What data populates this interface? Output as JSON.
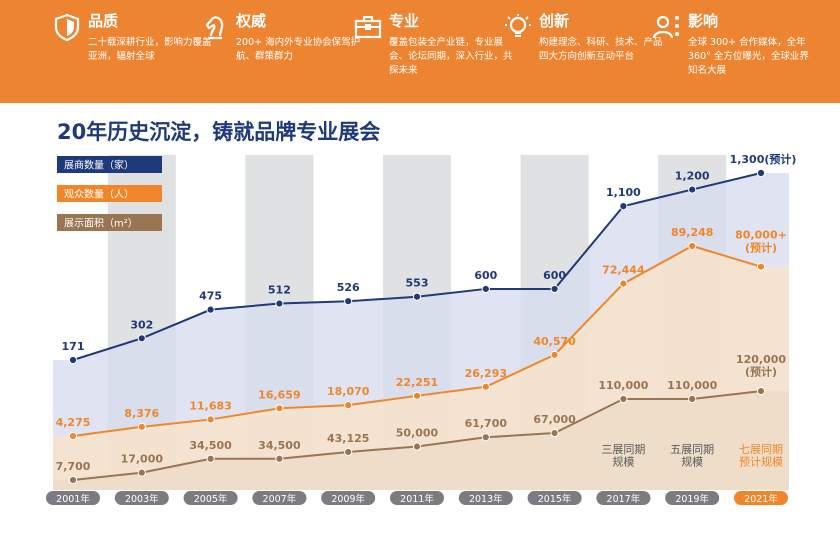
{
  "banner": {
    "features": [
      {
        "icon": "shield-icon",
        "title": "品质",
        "desc": "二十载深耕行业，影响力覆盖亚洲，辐射全球"
      },
      {
        "icon": "chess-knight-icon",
        "title": "权威",
        "desc": "200+ 海内外专业协会保驾护航、群策群力"
      },
      {
        "icon": "toolbox-icon",
        "title": "专业",
        "desc": "覆盖包装全产业链，专业展会、论坛同期，深入行业，共探未来"
      },
      {
        "icon": "lightbulb-icon",
        "title": "创新",
        "desc": "构建理念、科研、技术、产品四大方向创新互动平台"
      },
      {
        "icon": "people-network-icon",
        "title": "影响",
        "desc": "全球 300+ 合作媒体，全年 360° 全方位曝光，全球业界知名大展"
      }
    ]
  },
  "page_title": "20年历史沉淀，铸就品牌专业展会",
  "colors": {
    "banner": "#ec8431",
    "navy": "#1f3a7a",
    "orange": "#f0862a",
    "brown": "#9a7552",
    "stripe": "#e0e1e3",
    "navy_fill": "#d7dcee",
    "orange_fill": "#fbe3c9",
    "brown_fill": "#ecdcc6"
  },
  "chart_data": {
    "type": "line",
    "categories": [
      "2001年",
      "2003年",
      "2005年",
      "2007年",
      "2009年",
      "2011年",
      "2013年",
      "2015年",
      "2017年",
      "2019年",
      "2021年"
    ],
    "highlight_category": "2021年",
    "series": [
      {
        "name": "展商数量（家）",
        "color": "#1f3a7a",
        "values": [
          171,
          302,
          475,
          512,
          526,
          553,
          600,
          600,
          1100,
          1200,
          1300
        ],
        "labels": [
          "171",
          "302",
          "475",
          "512",
          "526",
          "553",
          "600",
          "600",
          "1,100",
          "1,200",
          "1,300(预计)"
        ]
      },
      {
        "name": "观众数量（人）",
        "color": "#f0862a",
        "values": [
          4275,
          8376,
          11683,
          16659,
          18070,
          22251,
          26293,
          40570,
          72444,
          89248,
          80000
        ],
        "labels": [
          "4,275",
          "8,376",
          "11,683",
          "16,659",
          "18,070",
          "22,251",
          "26,293",
          "40,570",
          "72,444",
          "89,248",
          "80,000+\n(预计)"
        ]
      },
      {
        "name": "展示面积（m²）",
        "color": "#9a7552",
        "values": [
          7700,
          17000,
          34500,
          34500,
          43125,
          50000,
          61700,
          67000,
          110000,
          110000,
          120000
        ],
        "labels": [
          "7,700",
          "17,000",
          "34,500",
          "34,500",
          "43,125",
          "50,000",
          "61,700",
          "67,000",
          "110,000",
          "110,000",
          "120,000\n(预计)"
        ]
      }
    ],
    "annotations": [
      {
        "category": "2017年",
        "text": "三展同期\n规模"
      },
      {
        "category": "2019年",
        "text": "五展同期\n规模"
      },
      {
        "category": "2021年",
        "text": "七展同期\n预计规模",
        "highlight": true
      }
    ],
    "legend_position": "top-left"
  }
}
